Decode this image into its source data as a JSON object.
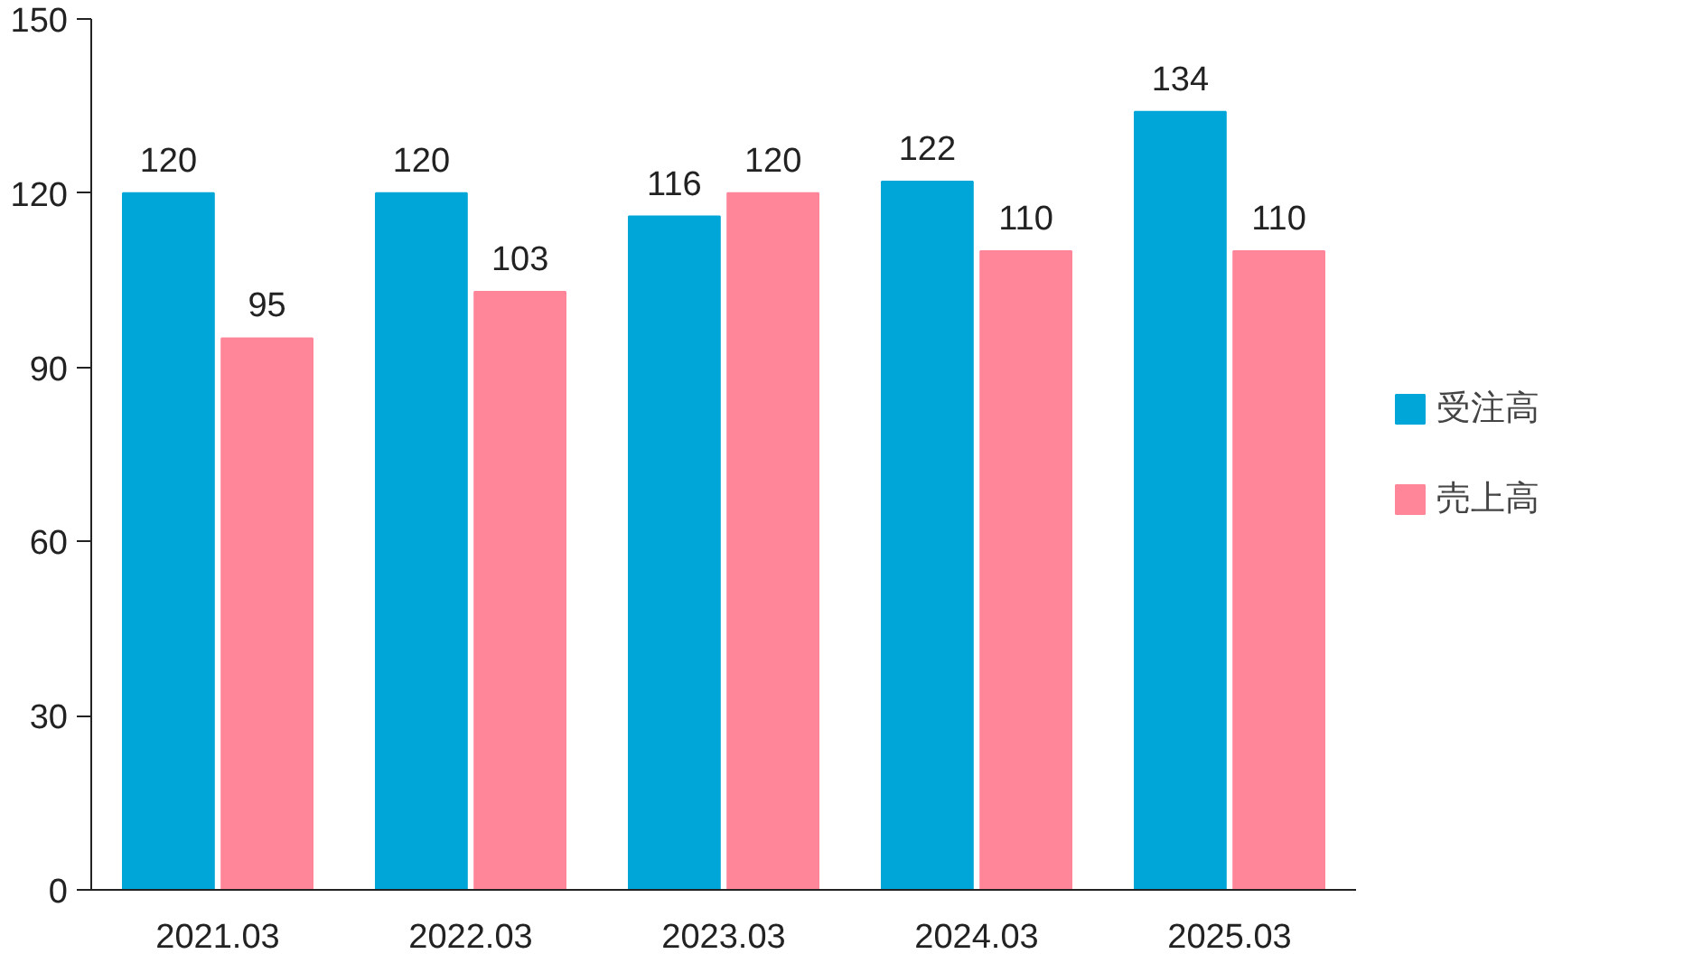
{
  "chart_data": {
    "type": "bar",
    "categories": [
      "2021.03",
      "2022.03",
      "2023.03",
      "2024.03",
      "2025.03"
    ],
    "series": [
      {
        "name": "受注高",
        "color": "#00a6d8",
        "values": [
          120,
          120,
          116,
          122,
          134
        ]
      },
      {
        "name": "売上高",
        "color": "#ff8599",
        "values": [
          95,
          103,
          120,
          110,
          110
        ]
      }
    ],
    "ylim": [
      0,
      150
    ],
    "yticks": [
      0,
      30,
      60,
      90,
      120,
      150
    ],
    "data_labels": true,
    "grid": false,
    "legend": "right"
  }
}
